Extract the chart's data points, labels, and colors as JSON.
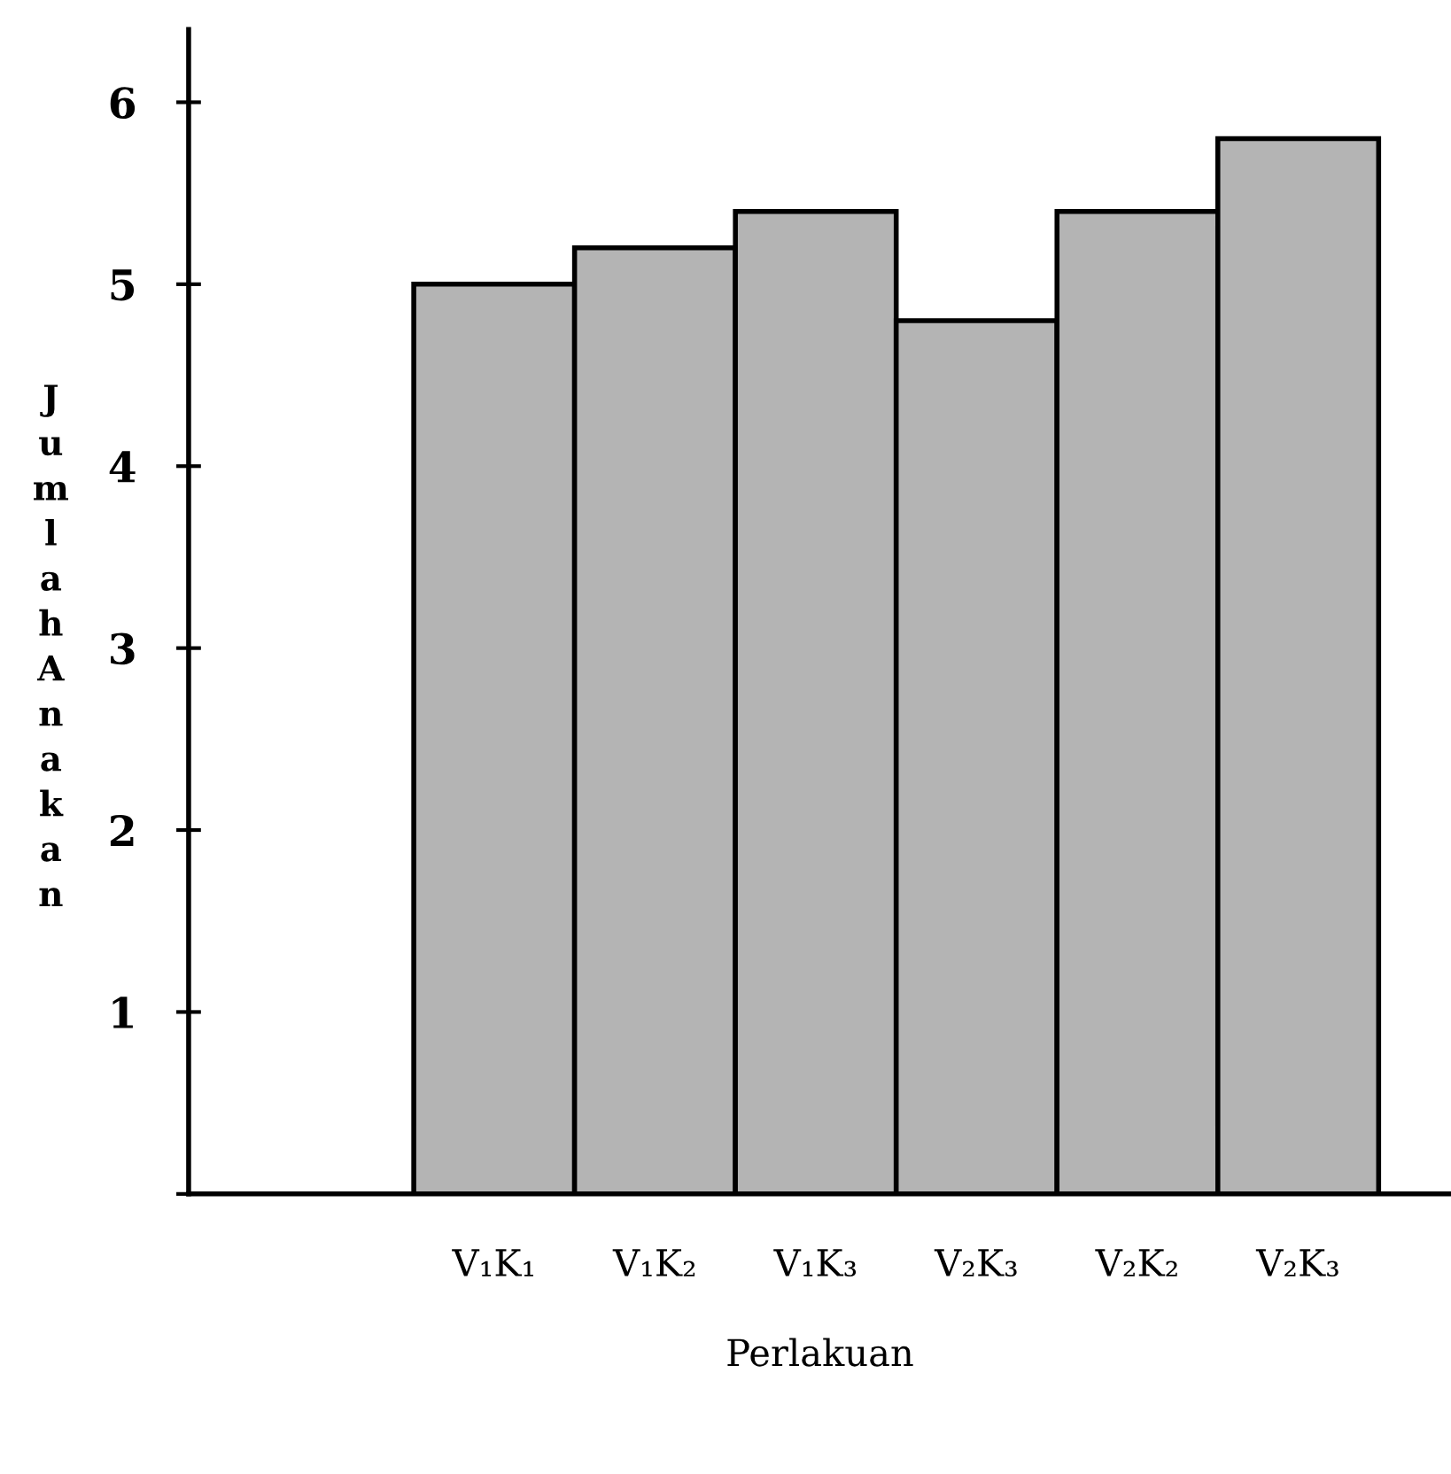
{
  "chart_data": {
    "type": "bar",
    "xlabel": "Perlakuan",
    "ylabel": "Jumlah Anakan",
    "categories": [
      "V₁K₁",
      "V₁K₂",
      "V₁K₃",
      "V₂K₃",
      "V₂K₂",
      "V₂K₃"
    ],
    "values": [
      5.0,
      5.2,
      5.4,
      4.8,
      5.4,
      5.8
    ],
    "color": "#b4b4b4",
    "ylim": [
      0,
      6.4
    ],
    "yticks": [
      {
        "value": 0,
        "label": null
      },
      1,
      2,
      3,
      4,
      5,
      6
    ],
    "grid": false,
    "legend": false
  }
}
